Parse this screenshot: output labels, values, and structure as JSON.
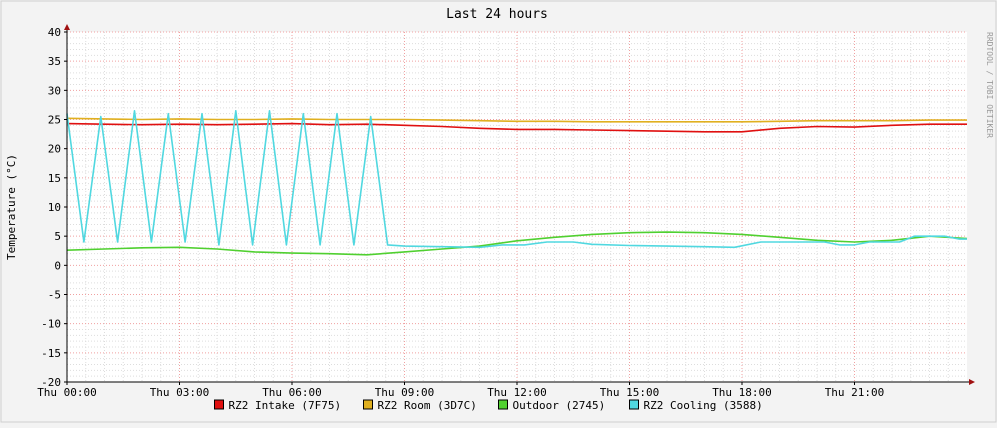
{
  "chart_data": {
    "type": "line",
    "title": "Last 24 hours",
    "ylabel": "Temperature (°C)",
    "xlabel": "",
    "watermark": "RRDTOOL / TOBI OETIKER",
    "xlim": [
      0,
      24
    ],
    "ylim": [
      -20,
      40
    ],
    "grid": true,
    "legend_position": "bottom",
    "x_ticks": [
      {
        "x": 0,
        "label": "Thu 00:00"
      },
      {
        "x": 3,
        "label": "Thu 03:00"
      },
      {
        "x": 6,
        "label": "Thu 06:00"
      },
      {
        "x": 9,
        "label": "Thu 09:00"
      },
      {
        "x": 12,
        "label": "Thu 12:00"
      },
      {
        "x": 15,
        "label": "Thu 15:00"
      },
      {
        "x": 18,
        "label": "Thu 18:00"
      },
      {
        "x": 21,
        "label": "Thu 21:00"
      }
    ],
    "y_ticks": [
      {
        "y": 40,
        "label": "40"
      },
      {
        "y": 35,
        "label": "35"
      },
      {
        "y": 30,
        "label": "30"
      },
      {
        "y": 25,
        "label": "25"
      },
      {
        "y": 20,
        "label": "20"
      },
      {
        "y": 15,
        "label": "15"
      },
      {
        "y": 10,
        "label": "10"
      },
      {
        "y": 5,
        "label": "5"
      },
      {
        "y": 0,
        "label": "0"
      },
      {
        "y": -5,
        "label": "-5"
      },
      {
        "y": -10,
        "label": "-10"
      },
      {
        "y": -15,
        "label": "-15"
      },
      {
        "y": -20,
        "label": "-20"
      }
    ],
    "series": [
      {
        "name": "RZ2 Intake (7F75)",
        "color": "#e01010",
        "x": [
          0,
          1,
          2,
          3,
          4,
          5,
          6,
          7,
          8,
          9,
          10,
          11,
          12,
          13,
          14,
          15,
          16,
          17,
          18,
          19,
          20,
          21,
          22,
          23,
          24
        ],
        "y": [
          24.3,
          24.2,
          24.1,
          24.2,
          24.1,
          24.2,
          24.3,
          24.1,
          24.2,
          24.0,
          23.8,
          23.5,
          23.3,
          23.3,
          23.2,
          23.1,
          23.0,
          22.9,
          22.9,
          23.5,
          23.8,
          23.7,
          24.0,
          24.2,
          24.2
        ]
      },
      {
        "name": "RZ2 Room (3D7C)",
        "color": "#e0b020",
        "x": [
          0,
          1,
          2,
          3,
          4,
          5,
          6,
          7,
          8,
          9,
          10,
          11,
          12,
          13,
          14,
          15,
          16,
          17,
          18,
          19,
          20,
          21,
          22,
          23,
          24
        ],
        "y": [
          25.2,
          25.1,
          25.0,
          25.1,
          25.0,
          25.0,
          25.1,
          25.0,
          25.0,
          25.0,
          24.9,
          24.8,
          24.7,
          24.7,
          24.6,
          24.6,
          24.6,
          24.6,
          24.6,
          24.7,
          24.8,
          24.8,
          24.8,
          24.9,
          24.9
        ]
      },
      {
        "name": "Outdoor (2745)",
        "color": "#50d030",
        "x": [
          0,
          1,
          2,
          3,
          4,
          5,
          6,
          7,
          8,
          9,
          10,
          11,
          12,
          13,
          14,
          15,
          16,
          17,
          18,
          19,
          20,
          21,
          22,
          23,
          24
        ],
        "y": [
          2.6,
          2.8,
          3.0,
          3.1,
          2.8,
          2.3,
          2.1,
          2.0,
          1.8,
          2.3,
          2.8,
          3.3,
          4.2,
          4.8,
          5.3,
          5.6,
          5.7,
          5.6,
          5.3,
          4.8,
          4.3,
          4.0,
          4.3,
          5.0,
          4.6
        ]
      },
      {
        "name": "RZ2 Cooling (3588)",
        "color": "#50d8e0",
        "x": [
          0,
          0.45,
          0.9,
          1.35,
          1.8,
          2.25,
          2.7,
          3.15,
          3.6,
          4.05,
          4.5,
          4.95,
          5.4,
          5.85,
          6.3,
          6.75,
          7.2,
          7.65,
          8.1,
          8.55,
          9.0,
          10.0,
          11.0,
          11.6,
          12.2,
          12.8,
          13.5,
          14.0,
          15.0,
          16.0,
          17.0,
          17.8,
          18.5,
          19.0,
          19.4,
          19.8,
          20.2,
          20.6,
          21.0,
          21.4,
          21.8,
          22.2,
          22.6,
          23.0,
          23.4,
          23.8,
          24
        ],
        "y": [
          26.0,
          4.0,
          25.5,
          4.0,
          26.5,
          4.0,
          26.0,
          4.0,
          26.0,
          3.5,
          26.5,
          3.5,
          26.5,
          3.5,
          26.0,
          3.5,
          26.0,
          3.5,
          25.5,
          3.5,
          3.3,
          3.2,
          3.1,
          3.5,
          3.5,
          4.0,
          4.0,
          3.6,
          3.4,
          3.3,
          3.2,
          3.1,
          4.0,
          4.0,
          4.0,
          4.0,
          4.0,
          3.5,
          3.5,
          4.0,
          4.0,
          4.0,
          5.0,
          5.0,
          5.0,
          4.5,
          4.5
        ]
      }
    ]
  }
}
